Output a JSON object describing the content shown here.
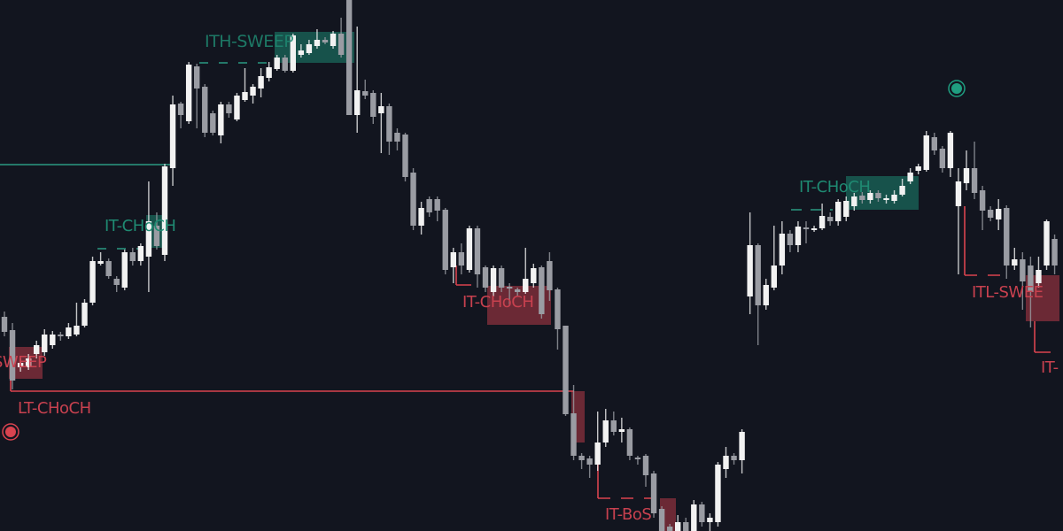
{
  "chart_data": {
    "type": "candlestick",
    "title": "",
    "xlabel": "",
    "ylabel": "",
    "grid": false,
    "legend": "none",
    "colors": {
      "background": "#12151f",
      "bullish": "#f2f2f2",
      "bearish": "#9a9ca3",
      "bullish_zone": "#1f9e80",
      "bearish_zone": "#d9434f",
      "bullish_label": "#1f8a72",
      "bearish_label": "#c8414f"
    },
    "candles_ohlc": [
      [
        242,
        248,
        220,
        225
      ],
      [
        227,
        235,
        160,
        170
      ],
      [
        185,
        195,
        180,
        190
      ],
      [
        185,
        200,
        182,
        195
      ],
      [
        200,
        215,
        195,
        210
      ],
      [
        202,
        228,
        198,
        222
      ],
      [
        210,
        226,
        206,
        222
      ],
      [
        222,
        225,
        215,
        220
      ],
      [
        220,
        235,
        217,
        230
      ],
      [
        222,
        258,
        220,
        232
      ],
      [
        232,
        262,
        230,
        258
      ],
      [
        258,
        310,
        255,
        305
      ],
      [
        302,
        315,
        300,
        305
      ],
      [
        305,
        308,
        285,
        288
      ],
      [
        285,
        288,
        270,
        278
      ],
      [
        275,
        318,
        272,
        315
      ],
      [
        315,
        320,
        300,
        305
      ],
      [
        305,
        325,
        300,
        322
      ],
      [
        310,
        395,
        270,
        350
      ],
      [
        345,
        360,
        318,
        322
      ],
      [
        312,
        415,
        305,
        412
      ],
      [
        410,
        492,
        390,
        482
      ],
      [
        483,
        485,
        455,
        470
      ],
      [
        463,
        530,
        460,
        527
      ],
      [
        525,
        528,
        455,
        500
      ],
      [
        502,
        505,
        445,
        450
      ],
      [
        472,
        475,
        447,
        450
      ],
      [
        447,
        485,
        438,
        482
      ],
      [
        482,
        485,
        467,
        472
      ],
      [
        465,
        495,
        463,
        492
      ],
      [
        487,
        523,
        485,
        496
      ],
      [
        492,
        505,
        483,
        502
      ],
      [
        500,
        523,
        490,
        514
      ],
      [
        512,
        530,
        508,
        524
      ],
      [
        522,
        538,
        520,
        535
      ],
      [
        535,
        538,
        518,
        520
      ],
      [
        520,
        562,
        518,
        560
      ],
      [
        538,
        550,
        535,
        543
      ],
      [
        540,
        555,
        538,
        550
      ],
      [
        548,
        567,
        545,
        555
      ],
      [
        555,
        558,
        550,
        552
      ],
      [
        548,
        565,
        545,
        562
      ],
      [
        562,
        580,
        535,
        538
      ],
      [
        600,
        600,
        470,
        470
      ],
      [
        470,
        570,
        450,
        498
      ],
      [
        497,
        510,
        488,
        492
      ],
      [
        495,
        498,
        460,
        468
      ],
      [
        472,
        495,
        427,
        480
      ],
      [
        480,
        483,
        425,
        440
      ],
      [
        450,
        455,
        430,
        440
      ],
      [
        448,
        450,
        395,
        400
      ],
      [
        405,
        410,
        340,
        345
      ],
      [
        345,
        372,
        335,
        365
      ],
      [
        375,
        378,
        355,
        360
      ],
      [
        375,
        378,
        350,
        362
      ],
      [
        363,
        365,
        290,
        295
      ],
      [
        298,
        320,
        280,
        315
      ],
      [
        315,
        325,
        290,
        300
      ],
      [
        295,
        345,
        292,
        342
      ],
      [
        342,
        345,
        275,
        290
      ],
      [
        298,
        300,
        270,
        275
      ],
      [
        270,
        300,
        265,
        297
      ],
      [
        297,
        300,
        270,
        275
      ],
      [
        276,
        280,
        255,
        275
      ],
      [
        273,
        275,
        265,
        270
      ],
      [
        270,
        320,
        268,
        285
      ],
      [
        280,
        302,
        275,
        297
      ],
      [
        298,
        300,
        240,
        245
      ],
      [
        305,
        315,
        260,
        272
      ],
      [
        273,
        275,
        205,
        228
      ],
      [
        232,
        232,
        130,
        132
      ],
      [
        133,
        165,
        80,
        85
      ],
      [
        85,
        88,
        70,
        80
      ],
      [
        82,
        85,
        60,
        75
      ],
      [
        75,
        135,
        68,
        100
      ],
      [
        100,
        138,
        95,
        125
      ],
      [
        125,
        135,
        108,
        112
      ],
      [
        112,
        128,
        100,
        115
      ],
      [
        115,
        117,
        80,
        85
      ],
      [
        83,
        85,
        75,
        82
      ],
      [
        85,
        87,
        50,
        63
      ],
      [
        65,
        68,
        15,
        20
      ],
      [
        25,
        28,
        0,
        0
      ],
      [
        5,
        8,
        0,
        0
      ],
      [
        0,
        18,
        0,
        10
      ],
      [
        10,
        15,
        0,
        0
      ],
      [
        0,
        35,
        0,
        30
      ],
      [
        30,
        33,
        5,
        10
      ],
      [
        10,
        20,
        0,
        15
      ],
      [
        10,
        78,
        5,
        75
      ],
      [
        70,
        95,
        60,
        85
      ],
      [
        85,
        88,
        75,
        80
      ],
      [
        80,
        115,
        65,
        112
      ],
      [
        265,
        360,
        245,
        323
      ],
      [
        323,
        325,
        210,
        255
      ],
      [
        255,
        285,
        250,
        278
      ],
      [
        275,
        345,
        272,
        300
      ],
      [
        300,
        350,
        290,
        336
      ],
      [
        336,
        340,
        315,
        323
      ],
      [
        323,
        350,
        315,
        344
      ],
      [
        343,
        350,
        325,
        342
      ],
      [
        342,
        345,
        338,
        342
      ],
      [
        342,
        370,
        340,
        356
      ],
      [
        355,
        360,
        345,
        350
      ],
      [
        350,
        375,
        345,
        372
      ],
      [
        355,
        378,
        350,
        373
      ],
      [
        367,
        382,
        362,
        378
      ],
      [
        379,
        383,
        370,
        374
      ],
      [
        374,
        385,
        370,
        382
      ],
      [
        382,
        385,
        372,
        376
      ],
      [
        376,
        380,
        370,
        376
      ],
      [
        373,
        385,
        370,
        380
      ],
      [
        380,
        398,
        378,
        390
      ],
      [
        395,
        410,
        392,
        405
      ],
      [
        407,
        415,
        403,
        412
      ],
      [
        408,
        452,
        406,
        447
      ],
      [
        445,
        450,
        425,
        430
      ],
      [
        432,
        435,
        405,
        410
      ],
      [
        410,
        452,
        400,
        450
      ],
      [
        367,
        410,
        290,
        395
      ],
      [
        393,
        430,
        385,
        410
      ],
      [
        410,
        440,
        375,
        382
      ],
      [
        385,
        390,
        340,
        362
      ],
      [
        363,
        367,
        350,
        354
      ],
      [
        352,
        375,
        340,
        364
      ],
      [
        365,
        368,
        285,
        300
      ],
      [
        300,
        320,
        295,
        307
      ],
      [
        307,
        315,
        250,
        282
      ],
      [
        300,
        310,
        230,
        270
      ],
      [
        280,
        310,
        275,
        295
      ],
      [
        300,
        352,
        295,
        350
      ],
      [
        330,
        335,
        290,
        300
      ]
    ],
    "annotations": {
      "labels": [
        {
          "text": "ITH-SWEEP",
          "side": "bullish"
        },
        {
          "text": "IT-CHoCH",
          "side": "bullish"
        },
        {
          "text": "SWEEP",
          "side": "bearish"
        },
        {
          "text": "LT-CHoCH",
          "side": "bearish"
        },
        {
          "text": "IT-CHoCH",
          "side": "bearish"
        },
        {
          "text": "IT-BoS",
          "side": "bearish"
        },
        {
          "text": "IT-CHoCH",
          "side": "bullish"
        },
        {
          "text": "ITL-SWEE",
          "side": "bearish"
        },
        {
          "text": "IT-",
          "side": "bearish"
        }
      ],
      "markers": [
        {
          "icon": "red-target-circle-icon",
          "side": "bearish"
        },
        {
          "icon": "green-target-circle-icon",
          "side": "bullish"
        }
      ]
    }
  }
}
